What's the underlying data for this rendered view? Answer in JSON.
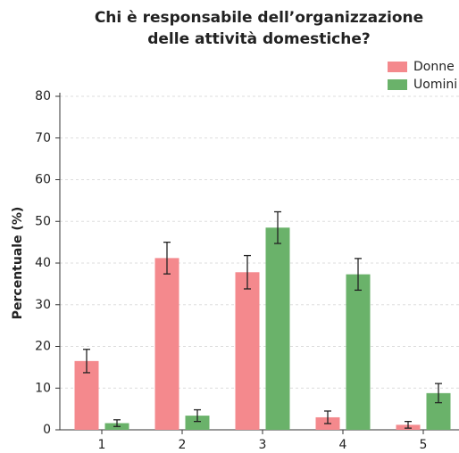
{
  "chart_data": {
    "type": "bar",
    "title": [
      "Chi è responsabile dell’organizzazione",
      "delle attività domestiche?"
    ],
    "ylabel": "Percentuale (%)",
    "categories": [
      "1",
      "2",
      "3",
      "4",
      "5"
    ],
    "series": [
      {
        "name": "Donne",
        "color": "#f4898d",
        "values": [
          16.5,
          41.2,
          37.8,
          3.0,
          1.2
        ],
        "errors": [
          2.8,
          3.8,
          4.0,
          1.5,
          0.8
        ]
      },
      {
        "name": "Uomini",
        "color": "#6ab26a",
        "values": [
          1.6,
          3.4,
          48.5,
          37.3,
          8.8
        ],
        "errors": [
          0.8,
          1.4,
          3.8,
          3.8,
          2.3
        ]
      }
    ],
    "ylim": [
      0,
      80
    ],
    "yticks": [
      0,
      10,
      20,
      30,
      40,
      50,
      60,
      70,
      80
    ],
    "grid": true,
    "legend": "upper right"
  }
}
